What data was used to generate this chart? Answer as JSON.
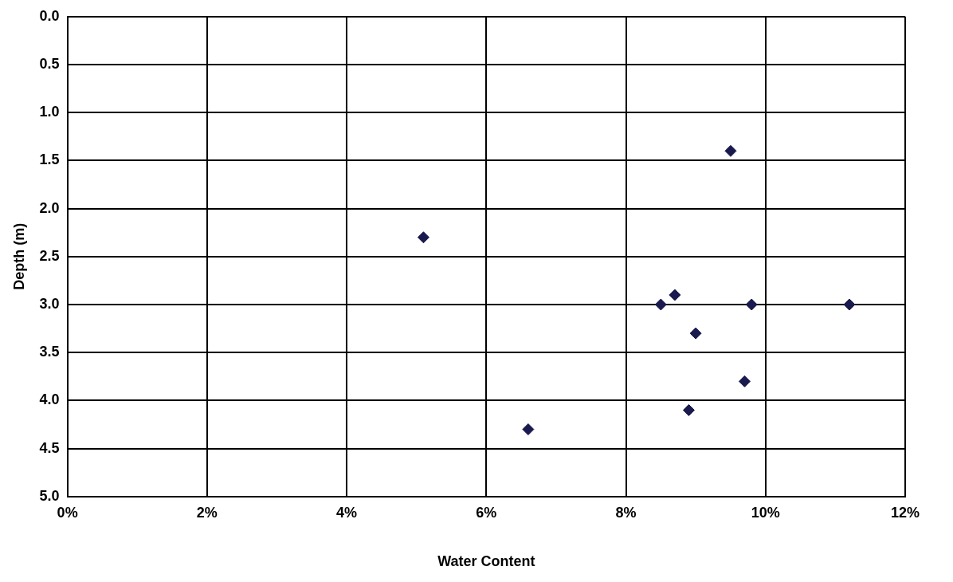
{
  "chart_data": {
    "type": "scatter",
    "xlabel": "Water Content",
    "ylabel": "Depth (m)",
    "x": [
      9.5,
      5.1,
      8.5,
      8.7,
      9.8,
      11.2,
      9.0,
      9.7,
      8.9,
      6.6
    ],
    "series": [
      {
        "color": "#1a1a4e",
        "values": [
          1.4,
          2.3,
          3.0,
          2.9,
          3.0,
          3.0,
          3.3,
          3.8,
          4.1,
          4.3
        ]
      }
    ],
    "xlim": [
      0,
      12
    ],
    "xticks": [
      {
        "value": 0,
        "label": "0%"
      },
      {
        "value": 2,
        "label": "2%"
      },
      {
        "value": 4,
        "label": "4%"
      },
      {
        "value": 6,
        "label": "6%"
      },
      {
        "value": 8,
        "label": "8%"
      },
      {
        "value": 10,
        "label": "10%"
      },
      {
        "value": 12,
        "label": "12%"
      }
    ],
    "ylim": [
      5,
      0
    ],
    "yticks": [
      {
        "value": 0,
        "label": "0.0"
      },
      {
        "value": 0.5,
        "label": "0.5"
      },
      {
        "value": 1,
        "label": "1.0"
      },
      {
        "value": 1.5,
        "label": "1.5"
      },
      {
        "value": 2,
        "label": "2.0"
      },
      {
        "value": 2.5,
        "label": "2.5"
      },
      {
        "value": 3,
        "label": "3.0"
      },
      {
        "value": 3.5,
        "label": "3.5"
      },
      {
        "value": 4,
        "label": "4.0"
      },
      {
        "value": 4.5,
        "label": "4.5"
      },
      {
        "value": 5,
        "label": "5.0"
      }
    ],
    "grid": true,
    "marker": "diamond",
    "legend": false
  }
}
